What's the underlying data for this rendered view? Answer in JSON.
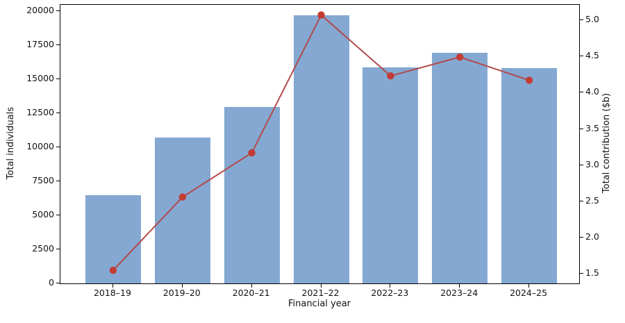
{
  "chart_data": {
    "type": "bar",
    "categories": [
      "2018–19",
      "2019–20",
      "2020–21",
      "2021–22",
      "2022–23",
      "2023–24",
      "2024–25"
    ],
    "series": [
      {
        "name": "Total individuals",
        "type": "bar",
        "axis": "left",
        "values": [
          6500,
          10700,
          12950,
          19700,
          15850,
          16950,
          15800
        ],
        "color": "#84a8d1"
      },
      {
        "name": "Total contribution ($b)",
        "type": "line",
        "axis": "right",
        "values": [
          1.55,
          2.56,
          3.17,
          5.07,
          4.23,
          4.49,
          4.17
        ],
        "color": "#b3494c",
        "marker": "circle",
        "marker_color": "#c33b33"
      }
    ],
    "title": "",
    "xlabel": "Financial year",
    "ylabel_left": "Total individuals",
    "ylabel_right": "Total contribution ($b)",
    "y_left": {
      "ticks": [
        0,
        2500,
        5000,
        7500,
        10000,
        12500,
        15000,
        17500,
        20000
      ],
      "range": [
        0,
        20450
      ]
    },
    "y_right": {
      "ticks": [
        1.5,
        2.0,
        2.5,
        3.0,
        3.5,
        4.0,
        4.5,
        5.0
      ],
      "range": [
        1.37,
        5.21
      ]
    },
    "grid": false,
    "legend": "none"
  }
}
